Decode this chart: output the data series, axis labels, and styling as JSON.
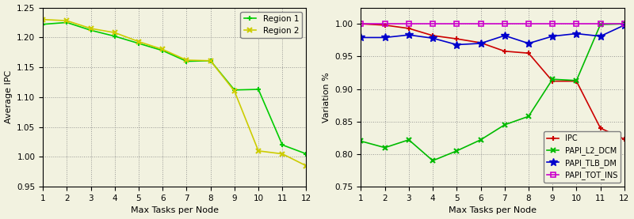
{
  "x": [
    1,
    2,
    3,
    4,
    5,
    6,
    7,
    8,
    9,
    10,
    11,
    12
  ],
  "region1_ipc": [
    1.222,
    1.225,
    1.212,
    1.202,
    1.19,
    1.178,
    1.16,
    1.161,
    1.112,
    1.113,
    1.02,
    1.005
  ],
  "region2_ipc": [
    1.23,
    1.228,
    1.215,
    1.208,
    1.193,
    1.18,
    1.162,
    1.161,
    1.11,
    1.01,
    1.005,
    0.985
  ],
  "ipc_var": [
    1.0,
    0.998,
    0.993,
    0.982,
    0.977,
    0.971,
    0.958,
    0.955,
    0.912,
    0.912,
    0.84,
    0.823
  ],
  "l2dcm_var": [
    0.82,
    0.81,
    0.822,
    0.79,
    0.805,
    0.822,
    0.845,
    0.858,
    0.915,
    0.913,
    0.999,
    1.0
  ],
  "tlbdm_var": [
    0.979,
    0.979,
    0.983,
    0.978,
    0.968,
    0.97,
    0.982,
    0.97,
    0.981,
    0.985,
    0.981,
    0.998
  ],
  "totins_var": [
    1.0,
    1.0,
    1.0,
    1.0,
    1.0,
    1.0,
    1.0,
    1.0,
    1.0,
    1.0,
    1.0,
    1.0
  ],
  "left_ylabel": "Average IPC",
  "right_ylabel": "Variation %",
  "xlabel": "Max Tasks per Node",
  "left_ylim": [
    0.95,
    1.25
  ],
  "right_ylim": [
    0.75,
    1.025
  ],
  "left_yticks": [
    0.95,
    1.0,
    1.05,
    1.1,
    1.15,
    1.2,
    1.25
  ],
  "right_yticks": [
    0.75,
    0.8,
    0.85,
    0.9,
    0.95,
    1.0
  ],
  "color_region1": "#00cc00",
  "color_region2": "#cccc00",
  "color_ipc": "#cc0000",
  "color_l2dcm": "#00bb00",
  "color_tlbdm": "#0000cc",
  "color_totins": "#cc00cc",
  "bg_color": "#f2f2e0"
}
